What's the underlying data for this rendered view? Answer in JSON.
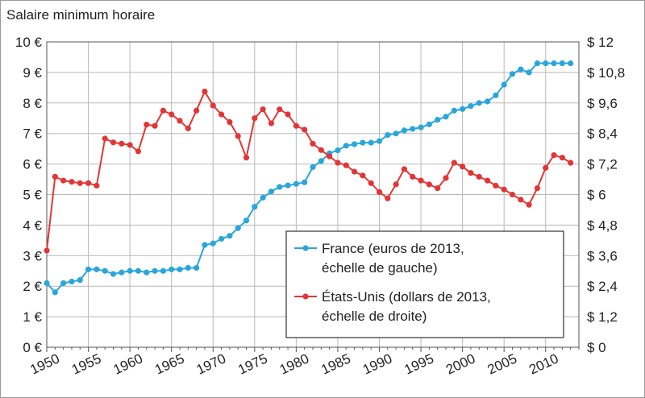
{
  "chart_data": {
    "type": "line",
    "title": "Salaire minimum horaire",
    "x": [
      1950,
      1951,
      1952,
      1953,
      1954,
      1955,
      1956,
      1957,
      1958,
      1959,
      1960,
      1961,
      1962,
      1963,
      1964,
      1965,
      1966,
      1967,
      1968,
      1969,
      1970,
      1971,
      1972,
      1973,
      1974,
      1975,
      1976,
      1977,
      1978,
      1979,
      1980,
      1981,
      1982,
      1983,
      1984,
      1985,
      1986,
      1987,
      1988,
      1989,
      1990,
      1991,
      1992,
      1993,
      1994,
      1995,
      1996,
      1997,
      1998,
      1999,
      2000,
      2001,
      2002,
      2003,
      2004,
      2005,
      2006,
      2007,
      2008,
      2009,
      2010,
      2011,
      2012,
      2013
    ],
    "x_ticks": [
      "1950",
      "1955",
      "1960",
      "1965",
      "1970",
      "1975",
      "1980",
      "1985",
      "1990",
      "1995",
      "2000",
      "2005",
      "2010"
    ],
    "x_tick_values": [
      1950,
      1955,
      1960,
      1965,
      1970,
      1975,
      1980,
      1985,
      1990,
      1995,
      2000,
      2005,
      2010
    ],
    "xlim": [
      1950,
      2014
    ],
    "y_left": {
      "ylim": [
        0,
        10
      ],
      "ticks": [
        "0 €",
        "1 €",
        "2 €",
        "3 €",
        "4 €",
        "5 €",
        "6 €",
        "7 €",
        "8 €",
        "9 €",
        "10 €"
      ],
      "tick_values": [
        0,
        1,
        2,
        3,
        4,
        5,
        6,
        7,
        8,
        9,
        10
      ]
    },
    "y_right": {
      "ylim": [
        0,
        12
      ],
      "ticks": [
        "$ 0",
        "$ 1,2",
        "$ 2,4",
        "$ 3,6",
        "$ 4,8",
        "$ 6",
        "$ 7,2",
        "$ 8,4",
        "$ 9,6",
        "$ 10,8",
        "$ 12"
      ],
      "tick_values": [
        0,
        1.2,
        2.4,
        3.6,
        4.8,
        6,
        7.2,
        8.4,
        9.6,
        10.8,
        12
      ]
    },
    "grid": true,
    "legend_position": "bottom-right",
    "series": [
      {
        "name": "France (euros de 2013, échelle de gauche)",
        "legend_lines": [
          "France (euros de 2013,",
          "échelle de gauche)"
        ],
        "axis": "left",
        "color": "#2aa6dc",
        "values": [
          2.1,
          1.8,
          2.1,
          2.15,
          2.2,
          2.55,
          2.55,
          2.5,
          2.4,
          2.45,
          2.5,
          2.5,
          2.45,
          2.5,
          2.5,
          2.55,
          2.55,
          2.6,
          2.6,
          3.35,
          3.4,
          3.55,
          3.65,
          3.9,
          4.15,
          4.6,
          4.9,
          5.1,
          5.25,
          5.3,
          5.35,
          5.4,
          5.9,
          6.1,
          6.35,
          6.45,
          6.6,
          6.65,
          6.7,
          6.7,
          6.75,
          6.95,
          7.0,
          7.1,
          7.15,
          7.2,
          7.3,
          7.45,
          7.55,
          7.75,
          7.8,
          7.9,
          8.0,
          8.05,
          8.25,
          8.6,
          8.95,
          9.1,
          9.0,
          9.3,
          9.3,
          9.3,
          9.3,
          9.3
        ]
      },
      {
        "name": "États-Unis (dollars de 2013, échelle de droite)",
        "legend_lines": [
          "États-Unis (dollars de 2013,",
          "échelle de droite)"
        ],
        "axis": "right",
        "color": "#e23636",
        "values": [
          3.8,
          6.7,
          6.55,
          6.5,
          6.45,
          6.45,
          6.35,
          8.2,
          8.05,
          8.0,
          7.95,
          7.7,
          8.75,
          8.7,
          9.3,
          9.15,
          8.9,
          8.6,
          9.3,
          10.05,
          9.5,
          9.15,
          8.85,
          8.3,
          7.45,
          9.0,
          9.35,
          8.8,
          9.35,
          9.15,
          8.7,
          8.55,
          8.0,
          7.75,
          7.5,
          7.25,
          7.15,
          6.9,
          6.75,
          6.45,
          6.1,
          5.85,
          6.4,
          7.0,
          6.7,
          6.55,
          6.4,
          6.25,
          6.65,
          7.25,
          7.1,
          6.85,
          6.7,
          6.55,
          6.35,
          6.2,
          6.0,
          5.8,
          5.6,
          6.25,
          7.05,
          7.55,
          7.45,
          7.25
        ]
      }
    ]
  }
}
